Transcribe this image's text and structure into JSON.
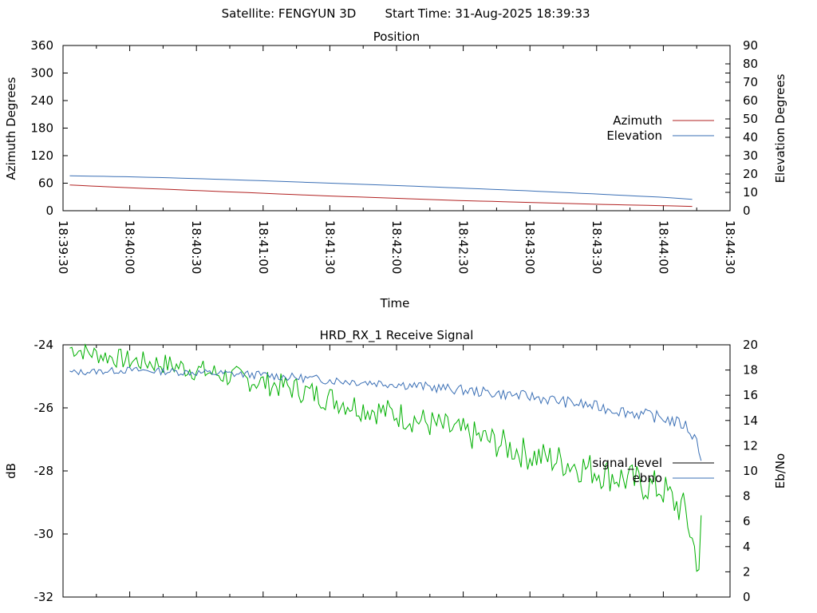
{
  "header": {
    "satellite_label": "Satellite: FENGYUN 3D",
    "start_time_label": "Start Time: 31-Aug-2025 18:39:33"
  },
  "chart_data": [
    {
      "type": "line",
      "title": "Position",
      "xlabel": "Time",
      "ylabel": "Azimuth Degrees",
      "y2label": "Elevation Degrees",
      "xlim": [
        "18:39:30",
        "18:44:30"
      ],
      "x_ticks": [
        "18:39:30",
        "18:40:00",
        "18:40:30",
        "18:41:00",
        "18:41:30",
        "18:42:00",
        "18:42:30",
        "18:43:00",
        "18:43:30",
        "18:44:00",
        "18:44:30"
      ],
      "ylim": [
        0,
        360
      ],
      "y_ticks": [
        0,
        60,
        120,
        180,
        240,
        300,
        360
      ],
      "y2lim": [
        0,
        90
      ],
      "y2_ticks": [
        0,
        10,
        20,
        30,
        40,
        50,
        60,
        70,
        80,
        90
      ],
      "legend_position": "right",
      "grid": false,
      "series": [
        {
          "name": "Azimuth",
          "axis": "y",
          "color": "#b22222",
          "x": [
            "18:39:33",
            "18:40:00",
            "18:40:30",
            "18:41:00",
            "18:41:30",
            "18:42:00",
            "18:42:30",
            "18:43:00",
            "18:43:30",
            "18:44:00",
            "18:44:17"
          ],
          "values": [
            56,
            50,
            44,
            38,
            32,
            27,
            22,
            18,
            14,
            11,
            9
          ]
        },
        {
          "name": "Elevation",
          "axis": "y2",
          "color": "#3a6fb5",
          "x": [
            "18:39:33",
            "18:40:00",
            "18:40:30",
            "18:41:00",
            "18:41:30",
            "18:42:00",
            "18:42:30",
            "18:43:00",
            "18:43:30",
            "18:44:00",
            "18:44:17"
          ],
          "values": [
            19,
            18.5,
            17.5,
            16.3,
            15,
            13.7,
            12.3,
            10.8,
            9.1,
            7.3,
            5.8
          ]
        }
      ]
    },
    {
      "type": "line",
      "title": "HRD_RX_1 Receive Signal",
      "ylabel": "dB",
      "y2label": "Eb/No",
      "xlim": [
        "18:39:30",
        "18:44:30"
      ],
      "ylim": [
        -32,
        -24
      ],
      "y_ticks": [
        -32,
        -30,
        -28,
        -26,
        -24
      ],
      "y2lim": [
        0,
        20
      ],
      "y2_ticks": [
        0,
        2,
        4,
        6,
        8,
        10,
        12,
        14,
        16,
        18,
        20
      ],
      "legend_position": "right",
      "grid": false,
      "series": [
        {
          "name": "signal_level",
          "axis": "y",
          "color": "#000000",
          "line_color": "#00b000",
          "x": [
            "18:39:33",
            "18:39:45",
            "18:40:00",
            "18:40:15",
            "18:40:30",
            "18:40:45",
            "18:41:00",
            "18:41:15",
            "18:41:30",
            "18:41:45",
            "18:42:00",
            "18:42:15",
            "18:42:30",
            "18:42:45",
            "18:43:00",
            "18:43:15",
            "18:43:30",
            "18:43:45",
            "18:44:00",
            "18:44:05",
            "18:44:10",
            "18:44:13",
            "18:44:16",
            "18:44:17"
          ],
          "values": [
            -24.1,
            -24.3,
            -24.5,
            -24.6,
            -24.8,
            -25.0,
            -25.2,
            -25.4,
            -25.7,
            -26.0,
            -26.2,
            -26.5,
            -26.8,
            -27.1,
            -27.5,
            -27.7,
            -28.0,
            -28.3,
            -28.6,
            -29.0,
            -29.3,
            -30.2,
            -31.0,
            -29.8
          ]
        },
        {
          "name": "ebno",
          "axis": "y2",
          "color": "#3a6fb5",
          "x": [
            "18:39:33",
            "18:40:00",
            "18:40:30",
            "18:41:00",
            "18:41:30",
            "18:42:00",
            "18:42:30",
            "18:43:00",
            "18:43:30",
            "18:44:00",
            "18:44:10",
            "18:44:15",
            "18:44:17"
          ],
          "values": [
            17.8,
            18.0,
            17.8,
            17.6,
            17.2,
            16.9,
            16.4,
            15.9,
            15.1,
            14.2,
            13.6,
            12.4,
            11.2
          ]
        }
      ]
    }
  ]
}
